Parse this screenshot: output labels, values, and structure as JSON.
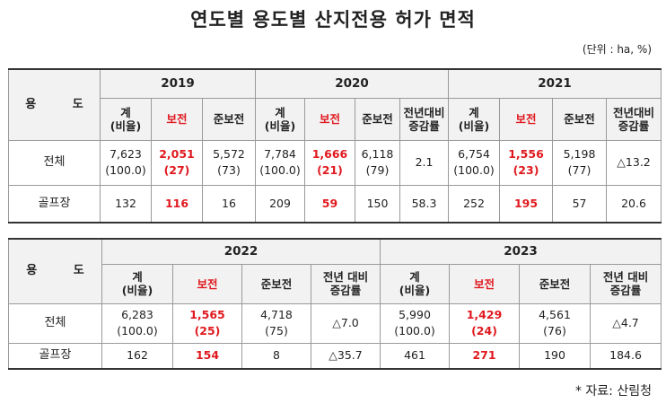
{
  "title": "연도별 용도별 산지전용 허가 면적",
  "unit": "(단위 : ha, %)",
  "usage_header": "용 도",
  "t1": {
    "years": [
      "2019",
      "2020",
      "2021"
    ],
    "sub": {
      "total": "계\n(비율)",
      "protected": "보전",
      "semi": "준보전",
      "change": "전년대비\n증감률"
    },
    "rows": [
      {
        "label": "전체",
        "y2019": {
          "total": "7,623",
          "total_ratio": "(100.0)",
          "protected": "2,051",
          "protected_ratio": "(27)",
          "semi": "5,572",
          "semi_ratio": "(73)"
        },
        "y2020": {
          "total": "7,784",
          "total_ratio": "(100.0)",
          "protected": "1,666",
          "protected_ratio": "(21)",
          "semi": "6,118",
          "semi_ratio": "(79)",
          "change": "2.1"
        },
        "y2021": {
          "total": "6,754",
          "total_ratio": "(100.0)",
          "protected": "1,556",
          "protected_ratio": "(23)",
          "semi": "5,198",
          "semi_ratio": "(77)",
          "change": "△13.2"
        }
      },
      {
        "label": "골프장",
        "y2019": {
          "total": "132",
          "protected": "116",
          "semi": "16"
        },
        "y2020": {
          "total": "209",
          "protected": "59",
          "semi": "150",
          "change": "58.3"
        },
        "y2021": {
          "total": "252",
          "protected": "195",
          "semi": "57",
          "change": "20.6"
        }
      }
    ]
  },
  "t2": {
    "years": [
      "2022",
      "2023"
    ],
    "sub": {
      "total": "계\n(비율)",
      "protected": "보전",
      "semi": "준보전",
      "change": "전년 대비\n증감률"
    },
    "rows": [
      {
        "label": "전체",
        "y2022": {
          "total": "6,283",
          "total_ratio": "(100.0)",
          "protected": "1,565",
          "protected_ratio": "(25)",
          "semi": "4,718",
          "semi_ratio": "(75)",
          "change": "△7.0"
        },
        "y2023": {
          "total": "5,990",
          "total_ratio": "(100.0)",
          "protected": "1,429",
          "protected_ratio": "(24)",
          "semi": "4,561",
          "semi_ratio": "(76)",
          "change": "△4.7"
        }
      },
      {
        "label": "골프장",
        "y2022": {
          "total": "162",
          "protected": "154",
          "semi": "8",
          "change": "△35.7"
        },
        "y2023": {
          "total": "461",
          "protected": "271",
          "semi": "190",
          "change": "184.6"
        }
      }
    ]
  },
  "source": "* 자료: 산림청"
}
